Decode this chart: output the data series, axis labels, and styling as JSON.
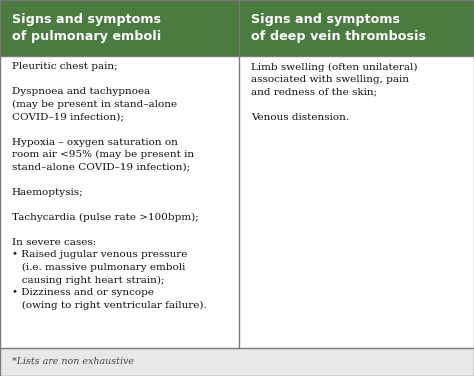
{
  "header_bg": "#4a7c3f",
  "header_text_color": "#ffffff",
  "body_bg": "#ffffff",
  "border_color": "#7a7a7a",
  "footer_bg": "#e8e8e8",
  "col1_header": "Signs and symptoms\nof pulmonary emboli",
  "col2_header": "Signs and symptoms\nof deep vein thrombosis",
  "col1_body": "Pleuritic chest pain;\n\nDyspnoea and tachypnoea\n(may be present in stand–alone\nCOVID–19 infection);\n\nHypoxia – oxygen saturation on\nroom air <95% (may be present in\nstand–alone COVID–19 infection);\n\nHaemoptysis;\n\nTachycardia (pulse rate >100bpm);\n\nIn severe cases:\n• Raised jugular venous pressure\n   (i.e. massive pulmonary emboli\n   causing right heart strain);\n• Dizziness and or syncope\n   (owing to right ventricular failure).",
  "col2_body": "Limb swelling (often unilateral)\nassociated with swelling, pain\nand redness of the skin;\n\nVenous distension.",
  "footer_text": "*Lists are non exhaustive",
  "figsize": [
    4.74,
    3.76
  ],
  "dpi": 100,
  "col_split": 0.505
}
